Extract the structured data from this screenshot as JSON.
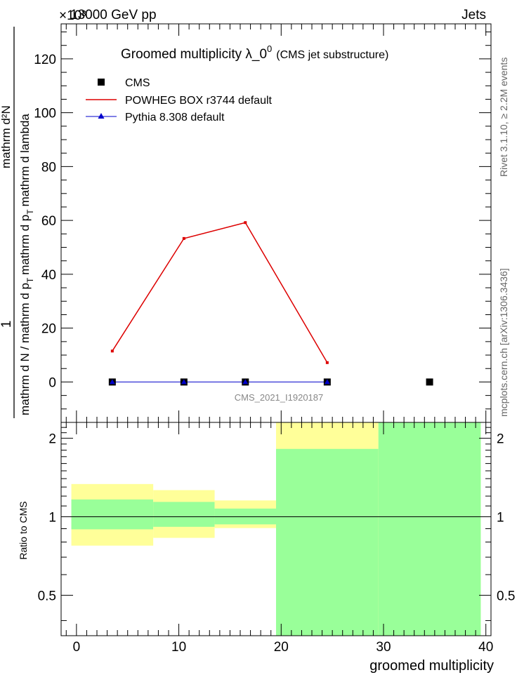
{
  "header": {
    "energy": "13000 GeV pp",
    "process": "Jets",
    "exponent": "×10³"
  },
  "side_text": {
    "rivet": "Rivet 3.1.10, ≥ 2.2M events",
    "mcplots": "mcplots.cern.ch [arXiv:1306.3436]"
  },
  "legend": {
    "title_main": "Groomed multiplicity  λ_0",
    "title_sup": "0",
    "title_note": "(CMS jet substructure)",
    "entries": [
      "CMS",
      "POWHEG BOX r3744 default",
      "Pythia 8.308 default"
    ]
  },
  "watermark": "CMS_2021_I1920187",
  "colors": {
    "cms": "#000000",
    "powheg": "#dd0000",
    "pythia": "#0000cc",
    "band_green": "#99ff99",
    "band_yellow": "#ffff99"
  },
  "chart_data": [
    {
      "type": "line",
      "panel": "main",
      "ylabel_part1": "1",
      "ylabel_part2": "mathrm d N / mathrm d p",
      "ylabel_sub2": "T",
      "ylabel_part3": "mathrm d p",
      "ylabel_sub3": "T",
      "ylabel_part4": "mathrm d lambda",
      "ylabel_part0": "mathrm d²N",
      "xlim": [
        -1.5,
        40.5
      ],
      "ylim": [
        -15,
        133
      ],
      "yticks": [
        0,
        20,
        40,
        60,
        80,
        100,
        120
      ],
      "series": [
        {
          "name": "CMS",
          "x": [
            3.5,
            10.5,
            16.5,
            24.5,
            34.5
          ],
          "y": [
            0,
            0,
            0,
            0,
            0
          ]
        },
        {
          "name": "POWHEG BOX r3744 default",
          "x": [
            3.5,
            10.5,
            16.5,
            24.5
          ],
          "y": [
            11.5,
            53.3,
            59.2,
            7.2
          ]
        },
        {
          "name": "Pythia 8.308 default",
          "x": [
            3.5,
            10.5,
            16.5,
            24.5
          ],
          "y": [
            0,
            0,
            0,
            0
          ]
        }
      ]
    },
    {
      "type": "area",
      "panel": "ratio",
      "ylabel": "Ratio to CMS",
      "xlabel": "groomed multiplicity",
      "xlim": [
        -1.5,
        40.5
      ],
      "ylim": [
        0.35,
        2.3
      ],
      "yticks": [
        0.5,
        1,
        2
      ],
      "ytick_labels": [
        "0.5",
        "1",
        "2"
      ],
      "xticks": [
        0,
        10,
        20,
        30,
        40
      ],
      "bins": [
        {
          "x": [
            -0.5,
            7.5
          ],
          "green": [
            0.895,
            1.165
          ],
          "yellow": [
            0.775,
            1.335
          ]
        },
        {
          "x": [
            7.5,
            13.5
          ],
          "green": [
            0.915,
            1.14
          ],
          "yellow": [
            0.83,
            1.265
          ]
        },
        {
          "x": [
            13.5,
            19.5
          ],
          "green": [
            0.935,
            1.075
          ],
          "yellow": [
            0.905,
            1.155
          ]
        },
        {
          "x": [
            19.5,
            29.5
          ],
          "green": [
            0.35,
            1.82
          ],
          "yellow": [
            0.35,
            2.3
          ]
        },
        {
          "x": [
            29.5,
            39.5
          ],
          "green": [
            0.35,
            2.3
          ],
          "yellow": [
            0.35,
            2.3
          ]
        }
      ]
    }
  ]
}
